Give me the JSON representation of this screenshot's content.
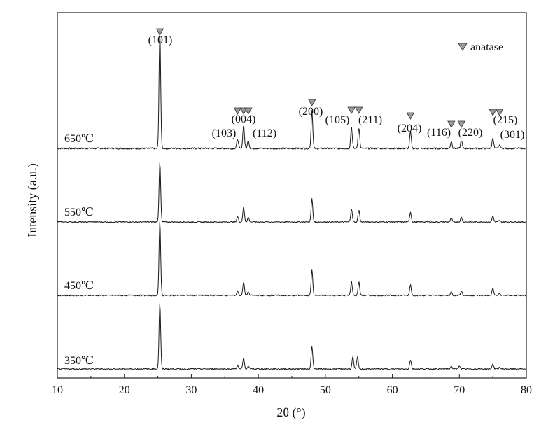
{
  "chart_data": {
    "type": "line",
    "xlabel": "2θ (°)",
    "ylabel": "Intensity (a.u.)",
    "xlim": [
      10,
      80
    ],
    "xticks": [
      10,
      20,
      30,
      40,
      50,
      60,
      70,
      80
    ],
    "grid": false,
    "legend": {
      "text": "anatase",
      "placement": "top-right"
    },
    "series": [
      {
        "name": "650℃",
        "peaks": [
          [
            25.3,
            100
          ],
          [
            36.9,
            8
          ],
          [
            37.8,
            20
          ],
          [
            38.5,
            7
          ],
          [
            48.0,
            32
          ],
          [
            53.9,
            18
          ],
          [
            55.0,
            18
          ],
          [
            62.7,
            14
          ],
          [
            68.8,
            6
          ],
          [
            70.3,
            7
          ],
          [
            75.0,
            9
          ],
          [
            76.0,
            3
          ]
        ]
      },
      {
        "name": "550℃",
        "peaks": [
          [
            25.3,
            78
          ],
          [
            36.9,
            7
          ],
          [
            37.8,
            19
          ],
          [
            38.5,
            6
          ],
          [
            48.0,
            30
          ],
          [
            53.9,
            17
          ],
          [
            55.0,
            16
          ],
          [
            62.7,
            13
          ],
          [
            68.8,
            5
          ],
          [
            70.3,
            6
          ],
          [
            75.0,
            8
          ],
          [
            76.0,
            2
          ]
        ]
      },
      {
        "name": "450℃",
        "peaks": [
          [
            25.3,
            82
          ],
          [
            36.9,
            5
          ],
          [
            37.8,
            15
          ],
          [
            38.5,
            4
          ],
          [
            48.0,
            28
          ],
          [
            53.9,
            15
          ],
          [
            55.0,
            15
          ],
          [
            62.7,
            12
          ],
          [
            68.8,
            4
          ],
          [
            70.3,
            5
          ],
          [
            75.0,
            8
          ],
          [
            76.0,
            2
          ]
        ]
      },
      {
        "name": "350℃",
        "peaks": [
          [
            25.3,
            79
          ],
          [
            36.9,
            4
          ],
          [
            37.8,
            13
          ],
          [
            38.5,
            3
          ],
          [
            48.0,
            27
          ],
          [
            54.1,
            14
          ],
          [
            54.8,
            14
          ],
          [
            62.7,
            11
          ],
          [
            68.8,
            3
          ],
          [
            70.0,
            4
          ],
          [
            75.0,
            6
          ],
          [
            76.0,
            2
          ]
        ]
      }
    ],
    "annotations": [
      {
        "label": "(101)",
        "x": 25.3
      },
      {
        "label": "(103)",
        "x": 36.9
      },
      {
        "label": "(004)",
        "x": 37.8
      },
      {
        "label": "(112)",
        "x": 38.5
      },
      {
        "label": "(200)",
        "x": 48.0
      },
      {
        "label": "(105)",
        "x": 53.9
      },
      {
        "label": "(211)",
        "x": 55.0
      },
      {
        "label": "(204)",
        "x": 62.7
      },
      {
        "label": "(116)",
        "x": 68.8
      },
      {
        "label": "(220)",
        "x": 70.3
      },
      {
        "label": "(215)",
        "x": 75.0
      },
      {
        "label": "(301)",
        "x": 76.0
      }
    ]
  }
}
